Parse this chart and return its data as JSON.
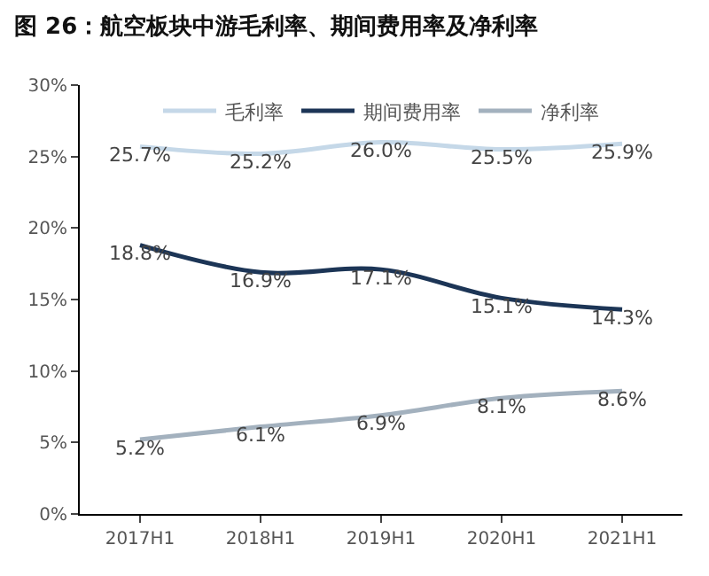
{
  "chart_data": {
    "type": "line",
    "title": "图 26：航空板块中游毛利率、期间费用率及净利率",
    "categories": [
      "2017H1",
      "2018H1",
      "2019H1",
      "2020H1",
      "2021H1"
    ],
    "series": [
      {
        "name": "毛利率",
        "color": "#c5d8e8",
        "values": [
          25.7,
          25.2,
          26.0,
          25.5,
          25.9
        ],
        "value_labels": [
          "25.7%",
          "25.2%",
          "26.0%",
          "25.5%",
          "25.9%"
        ]
      },
      {
        "name": "期间费用率",
        "color": "#1c3556",
        "values": [
          18.8,
          16.9,
          17.1,
          15.1,
          14.3
        ],
        "value_labels": [
          "18.8%",
          "16.9%",
          "17.1%",
          "15.1%",
          "14.3%"
        ]
      },
      {
        "name": "净利率",
        "color": "#a3b1be",
        "values": [
          5.2,
          6.1,
          6.9,
          8.1,
          8.6
        ],
        "value_labels": [
          "5.2%",
          "6.1%",
          "6.9%",
          "8.1%",
          "8.6%"
        ]
      }
    ],
    "ylim": [
      0,
      30
    ],
    "yticks": [
      {
        "value": 0,
        "label": "0%"
      },
      {
        "value": 5,
        "label": "5%"
      },
      {
        "value": 10,
        "label": "10%"
      },
      {
        "value": 15,
        "label": "15%"
      },
      {
        "value": 20,
        "label": "20%"
      },
      {
        "value": 25,
        "label": "25%"
      },
      {
        "value": 30,
        "label": "30%"
      }
    ],
    "grid": false,
    "legend": "top",
    "marker": "none",
    "line_style": "solid"
  }
}
